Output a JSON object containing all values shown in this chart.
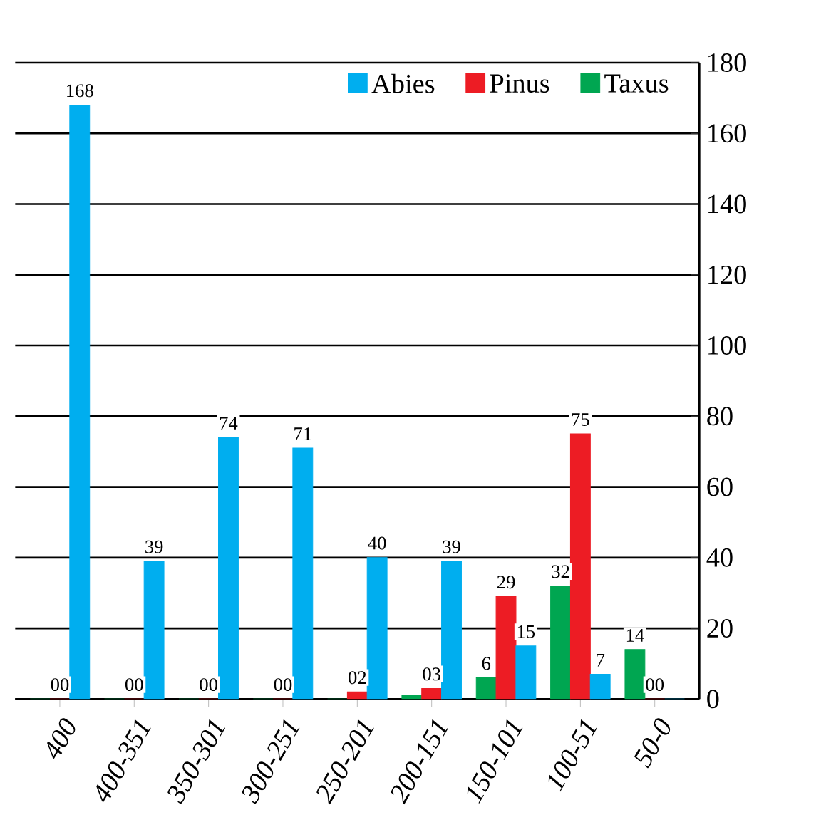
{
  "chart_data": {
    "type": "bar",
    "categories": [
      "400",
      "400-351",
      "350-301",
      "300-251",
      "250-201",
      "200-151",
      "150-101",
      "100-51",
      "50-0"
    ],
    "series": [
      {
        "name": "Taxus",
        "color": "#00a651",
        "values": [
          0,
          0,
          0,
          0,
          0,
          1,
          6,
          32,
          14
        ],
        "value_labels": [
          null,
          null,
          null,
          null,
          null,
          null,
          "6",
          "32",
          "14"
        ]
      },
      {
        "name": "Pinus",
        "color": "#ed1c24",
        "values": [
          0,
          0,
          0,
          0,
          2,
          3,
          29,
          75,
          0
        ],
        "value_labels": [
          "00",
          "00",
          "00",
          "00",
          "02",
          "03",
          "29",
          "75",
          "00"
        ]
      },
      {
        "name": "Abies",
        "color": "#00aeef",
        "values": [
          168,
          39,
          74,
          71,
          40,
          39,
          15,
          7,
          0
        ],
        "value_labels": [
          "168",
          "39",
          "74",
          "71",
          "40",
          "39",
          "15",
          "7",
          null
        ]
      }
    ],
    "ylim": [
      0,
      180
    ],
    "yticks": [
      0,
      20,
      40,
      60,
      80,
      100,
      120,
      140,
      160,
      180
    ],
    "grid": "y",
    "legend": "top"
  }
}
